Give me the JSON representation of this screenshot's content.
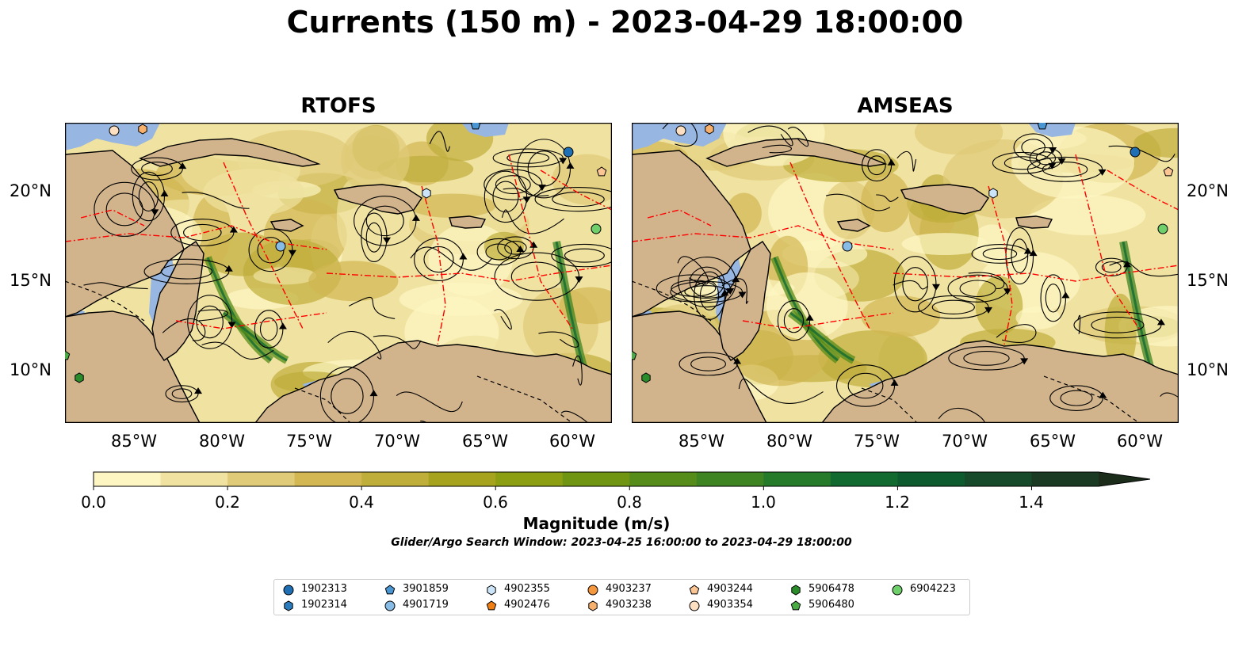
{
  "title": "Currents (150 m) - 2023-04-29 18:00:00",
  "panels": [
    {
      "name": "RTOFS"
    },
    {
      "name": "AMSEAS"
    }
  ],
  "axes": {
    "lon_ticks": [
      "85°W",
      "80°W",
      "75°W",
      "70°W",
      "65°W",
      "60°W"
    ],
    "lat_ticks": [
      "20°N",
      "15°N",
      "10°N"
    ]
  },
  "colorbar": {
    "label": "Magnitude (m/s)",
    "ticks": [
      "0.0",
      "0.2",
      "0.4",
      "0.6",
      "0.8",
      "1.0",
      "1.2",
      "1.4"
    ],
    "range": [
      0.0,
      1.5
    ],
    "extend": "max",
    "colors": [
      "#fdf6c3",
      "#f0e2a0",
      "#e0cb78",
      "#d2b752",
      "#bfae3a",
      "#a6a41e",
      "#8c9e12",
      "#6f9512",
      "#558c1a",
      "#3f8423",
      "#267b2b",
      "#136a31",
      "#0e5a2f",
      "#174a2a",
      "#1a3a23",
      "#1b2c1b"
    ]
  },
  "search_window": "Glider/Argo Search Window: 2023-04-25 16:00:00 to 2023-04-29 18:00:00",
  "legend": [
    {
      "id": "1902313",
      "marker": "circle",
      "color": "#1f6fb4"
    },
    {
      "id": "1902314",
      "marker": "hexagon",
      "color": "#2b7bbd"
    },
    {
      "id": "3901859",
      "marker": "pentagon",
      "color": "#4a96d2"
    },
    {
      "id": "4901719",
      "marker": "circle",
      "color": "#86bce6"
    },
    {
      "id": "4902355",
      "marker": "hexagon",
      "color": "#cce4f7"
    },
    {
      "id": "4902476",
      "marker": "pentagon",
      "color": "#f07f13"
    },
    {
      "id": "4903237",
      "marker": "circle",
      "color": "#f5973d"
    },
    {
      "id": "4903238",
      "marker": "hexagon",
      "color": "#f8b06d"
    },
    {
      "id": "4903244",
      "marker": "pentagon",
      "color": "#fbc594"
    },
    {
      "id": "4903354",
      "marker": "circle",
      "color": "#fde0c2"
    },
    {
      "id": "5906478",
      "marker": "hexagon",
      "color": "#2b8c2b"
    },
    {
      "id": "5906480",
      "marker": "pentagon",
      "color": "#4aab45"
    },
    {
      "id": "6904223",
      "marker": "circle",
      "color": "#6fcf6b"
    }
  ],
  "colors": {
    "land": "#d2b48c",
    "shallow_water": "#97b6e1",
    "eez": "#ff0000",
    "coast": "#000000"
  }
}
